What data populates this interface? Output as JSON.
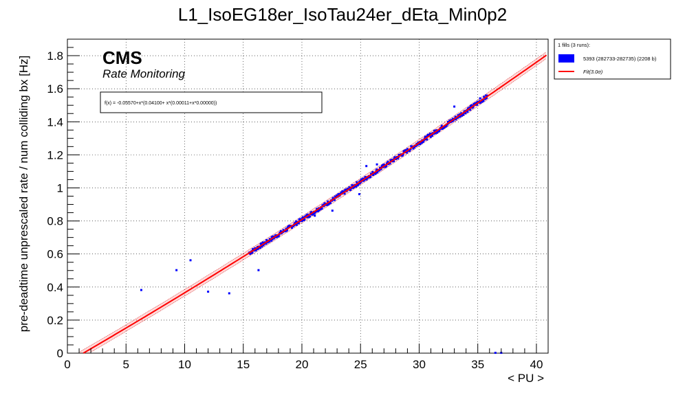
{
  "chart_data": {
    "type": "scatter",
    "title": "L1_IsoEG18er_IsoTau24er_dEta_Min0p2",
    "xlabel": "< PU >",
    "ylabel": "pre-deadtime unprescaled rate / num colliding bx [Hz]",
    "xlim": [
      0,
      41
    ],
    "ylim": [
      0,
      1.9
    ],
    "x_ticks": [
      0,
      5,
      10,
      15,
      20,
      25,
      30,
      35,
      40
    ],
    "x_tick_labels": [
      "0",
      "5",
      "10",
      "15",
      "20",
      "25",
      "30",
      "35",
      "40"
    ],
    "y_ticks": [
      0,
      0.2,
      0.4,
      0.6,
      0.8,
      1.0,
      1.2,
      1.4,
      1.6,
      1.8
    ],
    "y_tick_labels": [
      "0",
      "0.2",
      "0.4",
      "0.6",
      "0.8",
      "1",
      "1.2",
      "1.4",
      "1.6",
      "1.8"
    ],
    "grid": true,
    "cms_label": "CMS",
    "cms_sublabel": "Rate Monitoring",
    "fit_formula": "f(x) = -0.05570+x*(0.04100+ x*(0.00011+x*0.00000))",
    "fit": {
      "c0": -0.0557,
      "c1": 0.041,
      "c2": 0.00011,
      "c3": 0.0,
      "band_sigma": 3.0,
      "band_halfwidth": 0.02
    },
    "legend": {
      "header": "1 fills (3 runs):",
      "placement": "outside-top-right",
      "entries": [
        {
          "label": "5393 (282733-282735) (2208 b)",
          "kind": "box",
          "color": "#0000ff"
        },
        {
          "label": "Fit(3.0σ)",
          "kind": "line",
          "color": "#ff0000"
        }
      ]
    },
    "series": [
      {
        "name": "5393 (282733-282735) (2208 b)",
        "color": "#0000ff",
        "bulk": {
          "x_range": [
            15.5,
            35.8
          ],
          "noise": 0.012
        },
        "outliers": [
          {
            "x": 6.3,
            "y": 0.38
          },
          {
            "x": 9.3,
            "y": 0.5
          },
          {
            "x": 10.5,
            "y": 0.56
          },
          {
            "x": 12.0,
            "y": 0.37
          },
          {
            "x": 13.8,
            "y": 0.36
          },
          {
            "x": 16.3,
            "y": 0.5
          },
          {
            "x": 21.1,
            "y": 0.83
          },
          {
            "x": 22.6,
            "y": 0.86
          },
          {
            "x": 24.9,
            "y": 0.96
          },
          {
            "x": 25.5,
            "y": 1.13
          },
          {
            "x": 26.4,
            "y": 1.14
          },
          {
            "x": 28.8,
            "y": 1.22
          },
          {
            "x": 33.0,
            "y": 1.49
          },
          {
            "x": 35.2,
            "y": 1.54
          },
          {
            "x": 36.5,
            "y": 0.0
          },
          {
            "x": 37.0,
            "y": 0.0
          }
        ]
      }
    ]
  },
  "colors": {
    "data": "#0000ff",
    "fit": "#ff0000",
    "band": "#cc0000"
  }
}
